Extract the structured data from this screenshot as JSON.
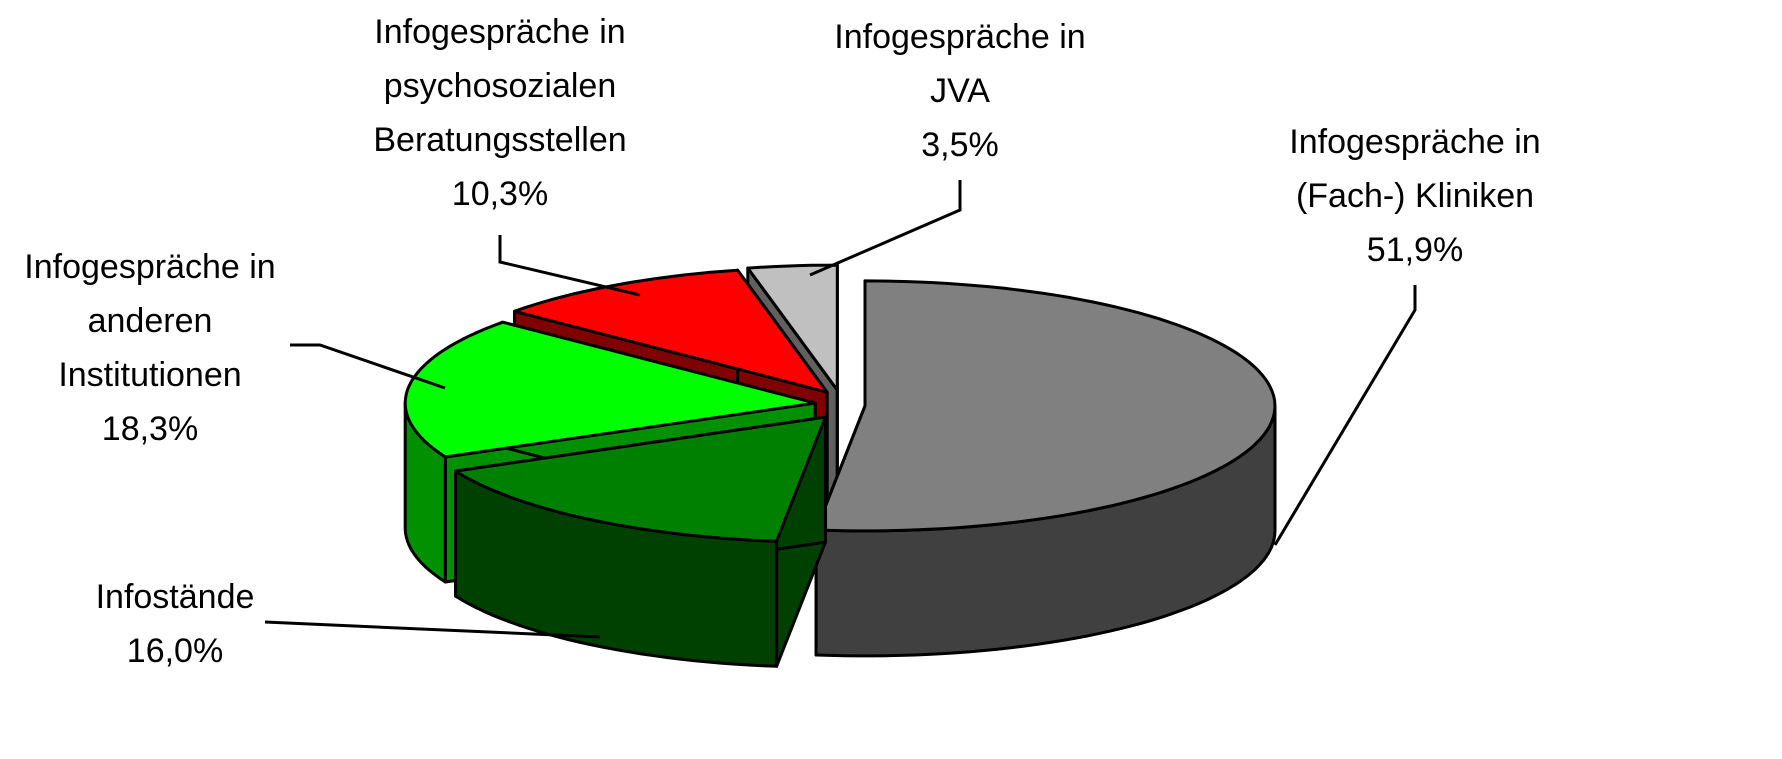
{
  "chart_data": {
    "type": "pie",
    "categories": [
      "Infogespräche in (Fach-) Kliniken",
      "Infostände",
      "Infogespräche in anderen Institutionen",
      "Infogespräche in psychosozialen Beratungsstellen",
      "Infogespräche in JVA"
    ],
    "values": [
      51.9,
      16.0,
      18.3,
      10.3,
      3.5
    ],
    "value_labels": [
      "51,9%",
      "16,0%",
      "18,3%",
      "10,3%",
      "3,5%"
    ],
    "colors": [
      "#808080",
      "#008000",
      "#00ff00",
      "#ff0000",
      "#c0c0c0"
    ],
    "side_colors": [
      "#404040",
      "#004000",
      "#009000",
      "#800000",
      "#606060"
    ]
  }
}
